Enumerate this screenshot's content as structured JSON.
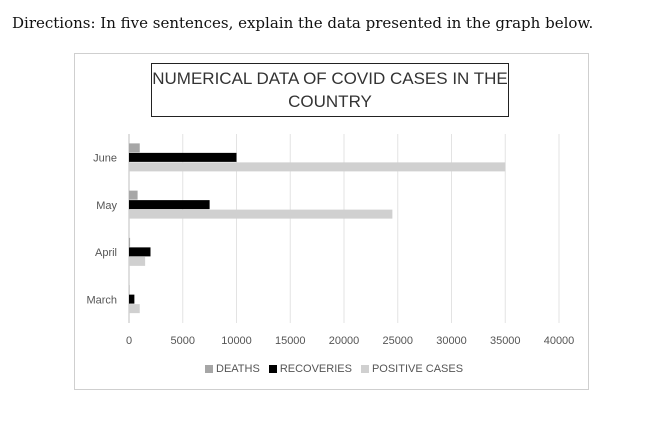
{
  "directions": "Directions:  In five sentences, explain the data presented in the graph below.",
  "chart_data": {
    "type": "bar",
    "orientation": "horizontal",
    "title": "NUMERICAL DATA OF COVID CASES IN THE COUNTRY",
    "categories": [
      "March",
      "April",
      "May",
      "June"
    ],
    "series": [
      {
        "name": "DEATHS",
        "color": "#a6a6a6",
        "values": [
          50,
          100,
          800,
          1000
        ]
      },
      {
        "name": "RECOVERIES",
        "color": "#000000",
        "values": [
          500,
          2000,
          7500,
          10000
        ]
      },
      {
        "name": "POSITIVE CASES",
        "color": "#d0d0d0",
        "values": [
          1000,
          1500,
          24500,
          35000
        ]
      }
    ],
    "x_ticks": [
      "0",
      "5000",
      "10000",
      "15000",
      "20000",
      "25000",
      "30000",
      "35000",
      "40000"
    ],
    "xlim": [
      0,
      40000
    ],
    "grid": true,
    "legend_position": "bottom"
  }
}
